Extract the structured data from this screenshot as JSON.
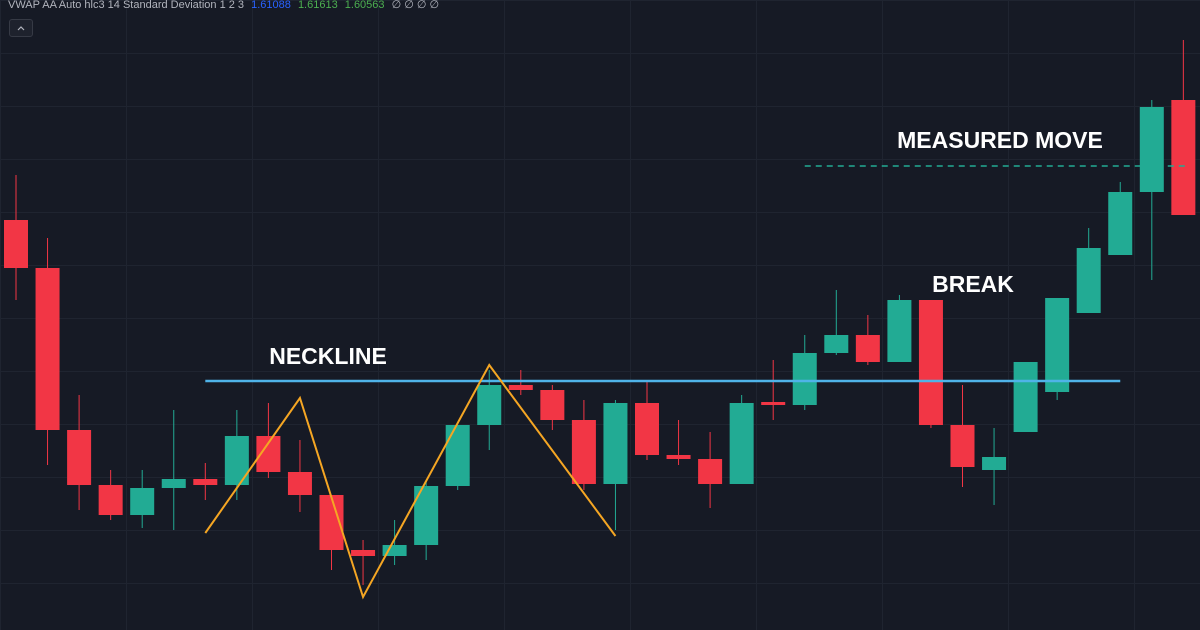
{
  "chart_data": {
    "type": "candlestick",
    "indicator": {
      "name": "VWAP AA Auto hlc3 14 Standard Deviation 1 2 3",
      "values": [
        "1.61088",
        "1.61613",
        "1.60563"
      ],
      "value_colors": [
        "#2962ff",
        "#4caf50",
        "#4caf50"
      ],
      "empty": "∅ ∅ ∅ ∅"
    },
    "up_color": "#22ab94",
    "down_color": "#f23645",
    "ylim": [
      0,
      630
    ],
    "open": [
      410,
      362,
      200,
      145,
      115,
      142,
      151,
      145,
      194,
      158,
      135,
      80,
      74,
      85,
      144,
      205,
      245,
      240,
      210,
      146,
      227,
      175,
      171,
      146,
      228,
      225,
      277,
      295,
      268,
      330,
      205,
      160,
      198,
      238,
      317,
      375,
      438,
      530
    ],
    "close": [
      362,
      200,
      145,
      115,
      142,
      151,
      145,
      194,
      158,
      135,
      80,
      74,
      85,
      144,
      205,
      245,
      240,
      210,
      146,
      227,
      175,
      171,
      146,
      227,
      225,
      277,
      295,
      268,
      330,
      205,
      163,
      173,
      268,
      332,
      382,
      438,
      523,
      415
    ],
    "high": [
      455,
      392,
      235,
      160,
      160,
      220,
      167,
      220,
      227,
      190,
      135,
      90,
      110,
      150,
      205,
      260,
      260,
      245,
      230,
      230,
      250,
      210,
      198,
      235,
      270,
      295,
      340,
      315,
      335,
      330,
      245,
      202,
      268,
      332,
      402,
      448,
      530,
      590
    ],
    "low": [
      330,
      165,
      120,
      110,
      102,
      100,
      130,
      130,
      152,
      118,
      60,
      45,
      65,
      70,
      140,
      180,
      235,
      200,
      140,
      100,
      170,
      165,
      122,
      146,
      210,
      220,
      275,
      265,
      268,
      202,
      143,
      125,
      198,
      230,
      317,
      375,
      350,
      415
    ],
    "neckline": {
      "label": "NECKLINE",
      "value": 249,
      "color": "#4fb3e8"
    },
    "measured_move": {
      "label": "MEASURED MOVE",
      "value": 464,
      "color": "#22ab94"
    },
    "break_label": "BREAK",
    "zigzag": {
      "color": "#f5a623",
      "x": [
        6,
        9,
        11,
        15,
        19
      ],
      "values": [
        97,
        232,
        33,
        265,
        94
      ]
    }
  }
}
